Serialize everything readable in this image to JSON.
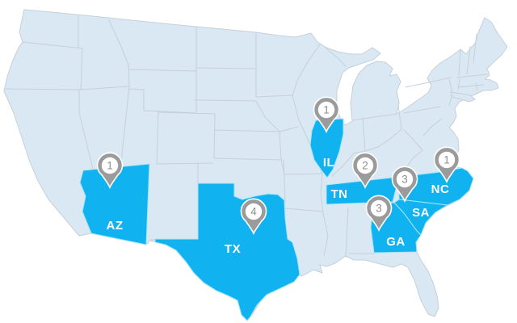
{
  "map": {
    "description": "US map with highlighted states and location count markers",
    "colors": {
      "background": "#ffffff",
      "state_base": "#d9e8f2",
      "state_border": "#c6d0d8",
      "state_highlight": "#10b3f0",
      "highlight_border": "#abe4fa",
      "pin": "#9b9b9b",
      "pin_number": "#8e8e8e",
      "state_label": "#ffffff"
    },
    "states": [
      {
        "id": "AZ",
        "label": "AZ",
        "count": "1"
      },
      {
        "id": "TX",
        "label": "TX",
        "count": "4"
      },
      {
        "id": "IL",
        "label": "IL",
        "count": "1"
      },
      {
        "id": "TN",
        "label": "TN",
        "count": "2"
      },
      {
        "id": "NC",
        "label": "NC",
        "count": "1"
      },
      {
        "id": "SC",
        "label": "SA",
        "count": "3"
      },
      {
        "id": "GA",
        "label": "GA",
        "count": "3"
      }
    ]
  }
}
